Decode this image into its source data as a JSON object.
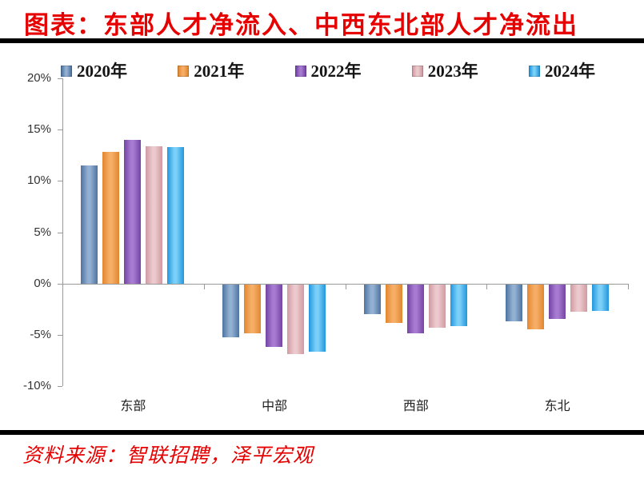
{
  "page": {
    "source": "资料来源：智联招聘，泽平宏观",
    "colors": {
      "title_red": "#e60000",
      "rule_black": "#000000",
      "axis_gray": "#999999"
    }
  },
  "chart_data": {
    "type": "bar",
    "title": "图表：东部人才净流入、中西东北部人才净流出",
    "categories": [
      "东部",
      "中部",
      "西部",
      "东北"
    ],
    "series": [
      {
        "name": "2020年",
        "values": [
          11.5,
          -5.2,
          -2.9,
          -3.6
        ],
        "color": {
          "dark": "#4e739f",
          "light": "#92b0d2"
        }
      },
      {
        "name": "2021年",
        "values": [
          12.8,
          -4.8,
          -3.8,
          -4.4
        ],
        "color": {
          "dark": "#e2862f",
          "light": "#f6ae67"
        }
      },
      {
        "name": "2022年",
        "values": [
          14.0,
          -6.1,
          -4.8,
          -3.4
        ],
        "color": {
          "dark": "#7444a4",
          "light": "#a77bd2"
        }
      },
      {
        "name": "2023年",
        "values": [
          13.4,
          -6.8,
          -4.2,
          -2.7
        ],
        "color": {
          "dark": "#cf9aa1",
          "light": "#ecc9cd"
        }
      },
      {
        "name": "2024年",
        "values": [
          13.3,
          -6.6,
          -4.1,
          -2.6
        ],
        "color": {
          "dark": "#2196dd",
          "light": "#7bd0f8"
        }
      }
    ],
    "ylim": [
      -10,
      20
    ],
    "yticks": [
      "20%",
      "15%",
      "10%",
      "5%",
      "0%",
      "-5%",
      "-10%"
    ],
    "ylabel": "",
    "xlabel": "",
    "legend_position": "top",
    "grid": false
  }
}
